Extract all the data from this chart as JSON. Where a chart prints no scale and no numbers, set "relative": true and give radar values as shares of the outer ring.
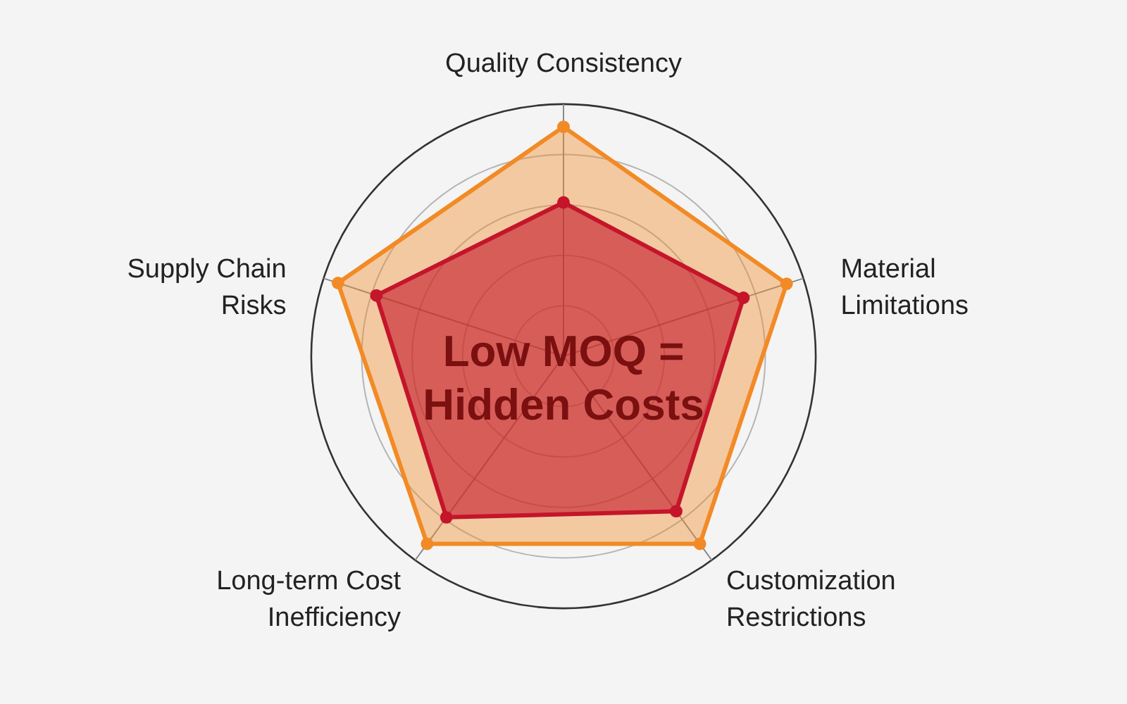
{
  "chart_data": {
    "type": "radar",
    "title": "Low MOQ = Hidden Costs",
    "relative": true,
    "grid": true,
    "categories": [
      "Quality Consistency",
      "Material Limitations",
      "Customization Restrictions",
      "Long-term Cost Inefficiency",
      "Supply Chain Risks"
    ],
    "series": [
      {
        "color": "#f28a25",
        "values": [
          0.91,
          0.93,
          0.92,
          0.92,
          0.94
        ]
      },
      {
        "color": "#c4152a",
        "values": [
          0.61,
          0.75,
          0.76,
          0.79,
          0.78
        ]
      }
    ],
    "marker": "circle"
  }
}
